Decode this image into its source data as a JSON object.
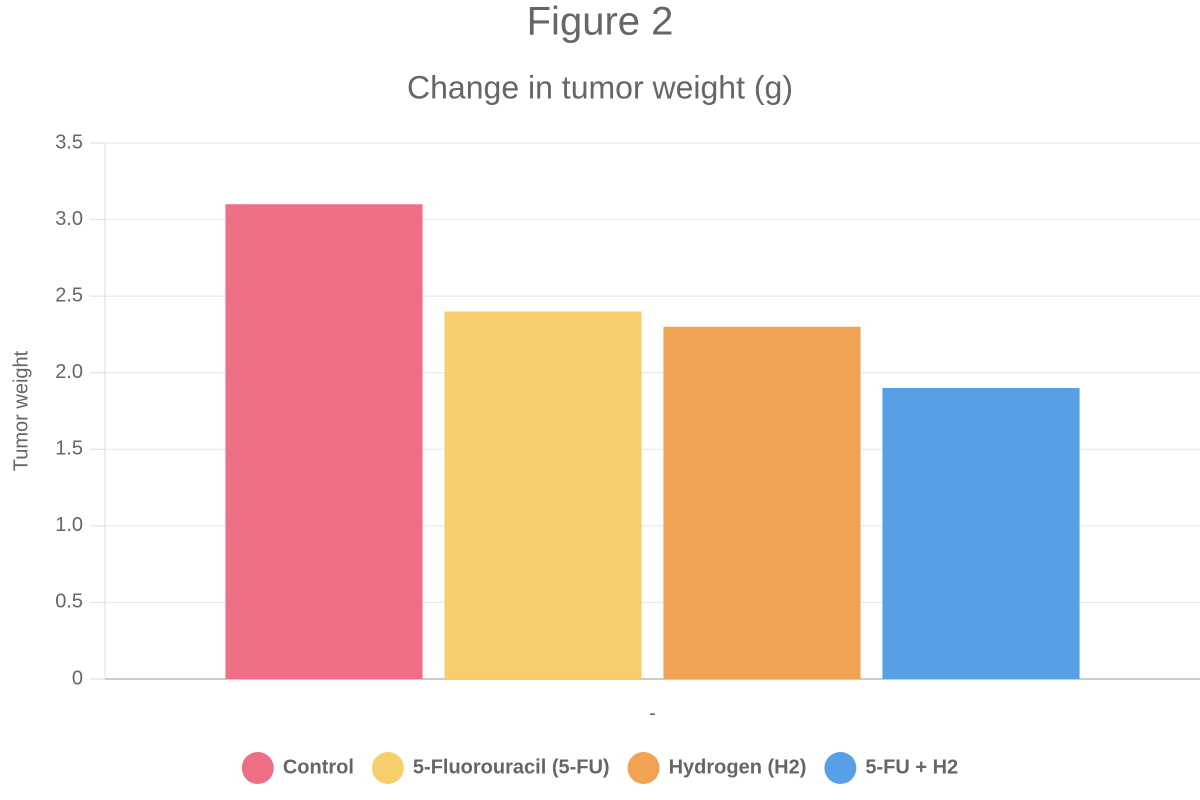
{
  "chart_data": {
    "type": "bar",
    "title": "Figure 2",
    "subtitle": "Change in tumor weight (g)",
    "y_label": "Tumor weight",
    "categories": [
      "-"
    ],
    "series": [
      {
        "name": "Control",
        "color": "#ed6e85",
        "values": [
          3.1
        ]
      },
      {
        "name": "5-Fluorouracil (5-FU)",
        "color": "#f6cf6c",
        "values": [
          2.4
        ]
      },
      {
        "name": "Hydrogen (H2)",
        "color": "#f1a354",
        "values": [
          2.3
        ]
      },
      {
        "name": "5-FU + H2",
        "color": "#57a0e5",
        "values": [
          1.9
        ]
      }
    ],
    "ylim": [
      0,
      3.5
    ],
    "yticks": [
      0,
      0.5,
      {
        "value": 1,
        "label": "1.0"
      },
      1.5,
      {
        "value": 2,
        "label": "2.0"
      },
      2.5,
      {
        "value": 3,
        "label": "3.0"
      },
      3.5
    ],
    "grid": true,
    "legend": "bottom"
  }
}
